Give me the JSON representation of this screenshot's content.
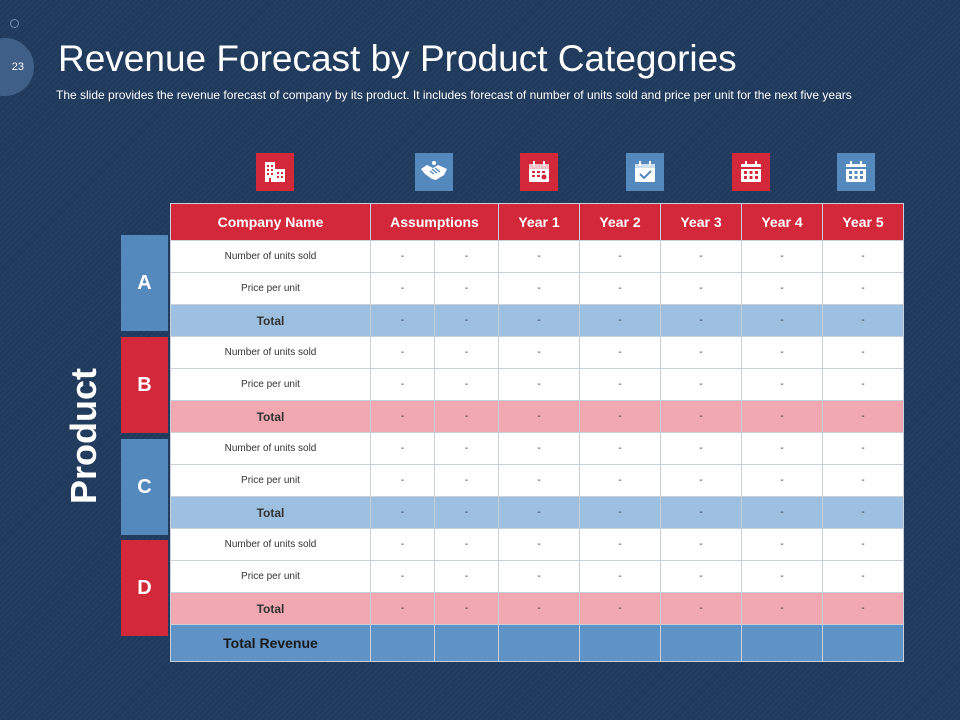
{
  "slide_number": "23",
  "title": "Revenue Forecast by Product Categories",
  "subtitle": "The slide provides  the revenue  forecast of company by its product.  It includes forecast of number of units sold and price  per unit for  the next five  years",
  "side_label": "Product",
  "colors": {
    "red": "#d2283a",
    "blue": "#5389bd",
    "background": "#1f3a5c"
  },
  "icons": [
    "office-building-icon",
    "handshake-icon",
    "calendar-icon",
    "calendar-check-icon",
    "calendar-icon",
    "calendar-icon"
  ],
  "table": {
    "headers": [
      "Company Name",
      "Assumptions",
      "Year 1",
      "Year 2",
      "Year 3",
      "Year 4",
      "Year 5"
    ],
    "groups": [
      {
        "name": "A",
        "rows": [
          {
            "label": "Number of units sold",
            "values": [
              "-",
              "-",
              "-",
              "-",
              "-",
              "-",
              "-"
            ]
          },
          {
            "label": "Price per unit",
            "values": [
              "-",
              "-",
              "-",
              "-",
              "-",
              "-",
              "-"
            ]
          },
          {
            "label": "Total",
            "values": [
              "-",
              "-",
              "-",
              "-",
              "-",
              "-",
              "-"
            ]
          }
        ]
      },
      {
        "name": "B",
        "rows": [
          {
            "label": "Number of units sold",
            "values": [
              "-",
              "-",
              "-",
              "-",
              "-",
              "-",
              "-"
            ]
          },
          {
            "label": "Price per unit",
            "values": [
              "-",
              "-",
              "-",
              "-",
              "-",
              "-",
              "-"
            ]
          },
          {
            "label": "Total",
            "values": [
              "-",
              "-",
              "-",
              "-",
              "-",
              "-",
              "-"
            ]
          }
        ]
      },
      {
        "name": "C",
        "rows": [
          {
            "label": "Number of units sold",
            "values": [
              "-",
              "-",
              "-",
              "-",
              "-",
              "-",
              "-"
            ]
          },
          {
            "label": "Price per unit",
            "values": [
              "-",
              "-",
              "-",
              "-",
              "-",
              "-",
              "-"
            ]
          },
          {
            "label": "Total",
            "values": [
              "-",
              "-",
              "-",
              "-",
              "-",
              "-",
              "-"
            ]
          }
        ]
      },
      {
        "name": "D",
        "rows": [
          {
            "label": "Number of units sold",
            "values": [
              "-",
              "-",
              "-",
              "-",
              "-",
              "-",
              "-"
            ]
          },
          {
            "label": "Price per unit",
            "values": [
              "-",
              "-",
              "-",
              "-",
              "-",
              "-",
              "-"
            ]
          },
          {
            "label": "Total",
            "values": [
              "-",
              "-",
              "-",
              "-",
              "-",
              "-",
              "-"
            ]
          }
        ]
      }
    ],
    "footer_label": "Total Revenue"
  }
}
